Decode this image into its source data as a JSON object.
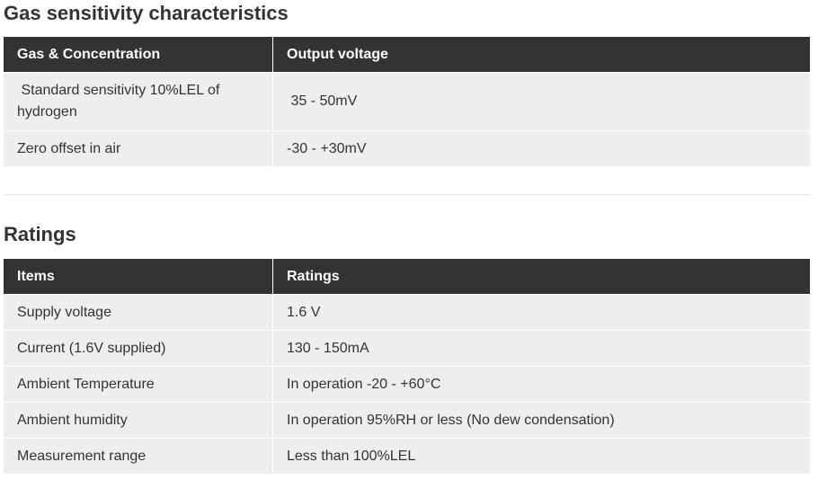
{
  "gas": {
    "title": "Gas sensitivity characteristics",
    "headers": [
      "Gas & Concentration",
      "Output voltage"
    ],
    "rows": [
      [
        " Standard sensitivity 10%LEL of hydrogen",
        " 35 - 50mV"
      ],
      [
        "Zero offset in air",
        "-30 - +30mV"
      ]
    ]
  },
  "ratings": {
    "title": "Ratings",
    "headers": [
      "Items",
      "Ratings"
    ],
    "rows": [
      [
        "Supply voltage",
        "1.6 V"
      ],
      [
        "Current (1.6V supplied)",
        "130 - 150mA"
      ],
      [
        "Ambient Temperature",
        "In operation -20 - +60°C"
      ],
      [
        "Ambient humidity",
        "In operation 95%RH or less (No dew condensation)"
      ],
      [
        "Measurement range",
        "Less than 100%LEL"
      ]
    ]
  }
}
